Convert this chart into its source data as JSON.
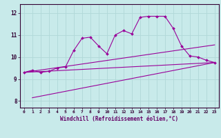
{
  "xlabel": "Windchill (Refroidissement éolien,°C)",
  "ylabel": "",
  "bg_color": "#c8eaea",
  "grid_color": "#b0d8d8",
  "line_color": "#990099",
  "xlim": [
    -0.5,
    23.5
  ],
  "ylim": [
    7.7,
    12.4
  ],
  "xticks": [
    0,
    1,
    2,
    3,
    4,
    5,
    6,
    7,
    8,
    9,
    10,
    11,
    12,
    13,
    14,
    15,
    16,
    17,
    18,
    19,
    20,
    21,
    22,
    23
  ],
  "yticks": [
    8,
    9,
    10,
    11,
    12
  ],
  "curve_x": [
    0,
    1,
    2,
    3,
    4,
    5,
    6,
    7,
    8,
    9,
    10,
    11,
    12,
    13,
    14,
    15,
    16,
    17,
    18,
    19,
    20,
    21,
    22,
    23
  ],
  "curve_y": [
    9.3,
    9.4,
    9.3,
    9.35,
    9.5,
    9.55,
    10.3,
    10.85,
    10.9,
    10.5,
    10.15,
    11.0,
    11.2,
    11.05,
    11.8,
    11.85,
    11.85,
    11.85,
    11.3,
    10.5,
    10.05,
    10.0,
    9.85,
    9.75
  ],
  "line1_x": [
    1,
    23
  ],
  "line1_y": [
    8.15,
    9.75
  ],
  "line2_x": [
    0,
    23
  ],
  "line2_y": [
    9.3,
    9.75
  ],
  "line3_x": [
    0,
    23
  ],
  "line3_y": [
    9.3,
    10.55
  ]
}
